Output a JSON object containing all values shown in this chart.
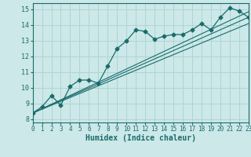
{
  "xlabel": "Humidex (Indice chaleur)",
  "xlim": [
    0,
    23
  ],
  "ylim": [
    7.8,
    15.4
  ],
  "bg_color": "#cce8e8",
  "grid_color": "#b0d4d4",
  "line_color": "#1a6b6b",
  "xticks": [
    0,
    1,
    2,
    3,
    4,
    5,
    6,
    7,
    8,
    9,
    10,
    11,
    12,
    13,
    14,
    15,
    16,
    17,
    18,
    19,
    20,
    21,
    22,
    23
  ],
  "yticks": [
    8,
    9,
    10,
    11,
    12,
    13,
    14,
    15
  ],
  "series": [
    {
      "x": [
        0,
        1,
        2,
        3,
        4,
        5,
        6,
        7,
        8,
        9,
        10,
        11,
        12,
        13,
        14,
        15,
        16,
        17,
        18,
        19,
        20,
        21,
        22,
        23
      ],
      "y": [
        8.4,
        8.8,
        9.5,
        8.9,
        10.1,
        10.5,
        10.5,
        10.3,
        11.4,
        12.5,
        13.0,
        13.7,
        13.6,
        13.1,
        13.3,
        13.4,
        13.4,
        13.7,
        14.1,
        13.7,
        14.5,
        15.1,
        14.9,
        14.5
      ],
      "marker": "D",
      "markersize": 2.5
    },
    {
      "x": [
        0,
        23
      ],
      "y": [
        8.4,
        14.85
      ],
      "marker": null,
      "markersize": 0
    },
    {
      "x": [
        0,
        23
      ],
      "y": [
        8.4,
        14.5
      ],
      "marker": null,
      "markersize": 0
    },
    {
      "x": [
        0,
        23
      ],
      "y": [
        8.4,
        14.1
      ],
      "marker": null,
      "markersize": 0
    }
  ]
}
